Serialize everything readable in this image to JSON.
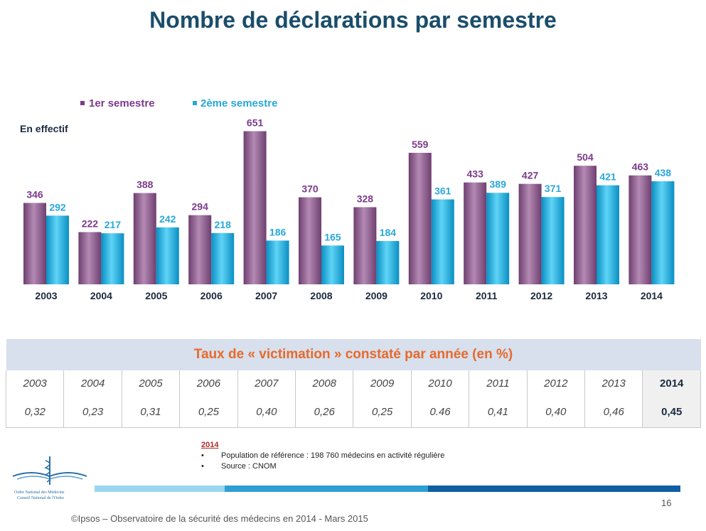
{
  "title": "Nombre de déclarations par semestre",
  "chart_data": {
    "type": "bar",
    "title": "Nombre de déclarations par semestre",
    "ylabel": "En effectif",
    "ylim": [
      0,
      700
    ],
    "grid": false,
    "legend_position": "top-left",
    "categories": [
      "2003",
      "2004",
      "2005",
      "2006",
      "2007",
      "2008",
      "2009",
      "2010",
      "2011",
      "2012",
      "2013",
      "2014"
    ],
    "series": [
      {
        "name": "1er semestre",
        "values": [
          346,
          222,
          388,
          294,
          651,
          370,
          328,
          559,
          433,
          427,
          504,
          463
        ]
      },
      {
        "name": "2ème semestre",
        "values": [
          292,
          217,
          242,
          218,
          186,
          165,
          184,
          361,
          389,
          371,
          421,
          438
        ]
      }
    ],
    "colors": {
      "series1": "#8c5a8c",
      "series2": "#1ab1e3",
      "series1_label": "#7a3b8a",
      "series2_label": "#29a8d8"
    }
  },
  "table": {
    "caption": "Taux de « victimation » constaté par année (en %)",
    "years": [
      "2003",
      "2004",
      "2005",
      "2006",
      "2007",
      "2008",
      "2009",
      "2010",
      "2011",
      "2012",
      "2013",
      "2014"
    ],
    "values": [
      "0,32",
      "0,23",
      "0,31",
      "0,25",
      "0,40",
      "0,26",
      "0,25",
      "0.46",
      "0,41",
      "0,40",
      "0,46",
      "0,45"
    ]
  },
  "notes": {
    "year": "2014",
    "items": [
      "Population de référence : 198 760 médecins en activité régulière",
      "Source : CNOM"
    ]
  },
  "logo": {
    "line1": "Ordre National des Médecins",
    "line2": "Conseil National de l'Ordre"
  },
  "page_number": "16",
  "footer": "©Ipsos – Observatoire de la sécurité des médecins en 2014 - Mars 2015"
}
